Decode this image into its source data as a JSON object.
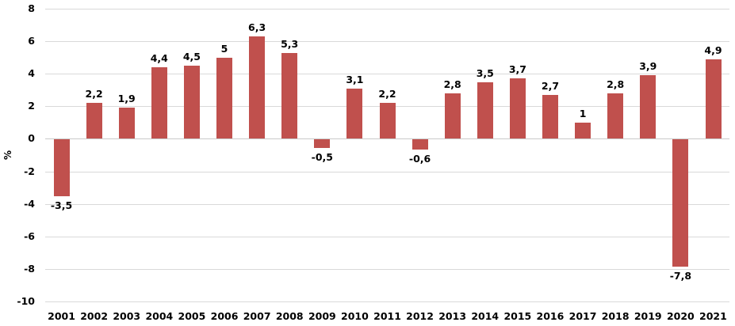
{
  "chart_data": {
    "type": "bar",
    "ylabel": "%",
    "xlabel": "",
    "categories": [
      "2001",
      "2002",
      "2003",
      "2004",
      "2005",
      "2006",
      "2007",
      "2008",
      "2009",
      "2010",
      "2011",
      "2012",
      "2013",
      "2014",
      "2015",
      "2016",
      "2017",
      "2018",
      "2019",
      "2020",
      "2021"
    ],
    "values": [
      -3.5,
      2.2,
      1.9,
      4.4,
      4.5,
      5,
      6.3,
      5.3,
      -0.5,
      3.1,
      2.2,
      -0.6,
      2.8,
      3.5,
      3.7,
      2.7,
      1,
      2.8,
      3.9,
      -7.8,
      4.9
    ],
    "value_labels": [
      "-3,5",
      "2,2",
      "1,9",
      "4,4",
      "4,5",
      "5",
      "6,3",
      "5,3",
      "-0,5",
      "3,1",
      "2,2",
      "-0,6",
      "2,8",
      "3,5",
      "3,7",
      "2,7",
      "1",
      "2,8",
      "3,9",
      "-7,8",
      "4,9"
    ],
    "yticks": [
      8,
      6,
      4,
      2,
      0,
      -2,
      -4,
      -6,
      -8,
      -10
    ],
    "ylim": [
      -10,
      8
    ],
    "grid": true,
    "legend": "none",
    "colors": {
      "bar": "#c0504d",
      "gridline": "#d9d9d9",
      "zero_line": "#c9c9c9",
      "text": "#000000",
      "background": "#ffffff"
    }
  }
}
